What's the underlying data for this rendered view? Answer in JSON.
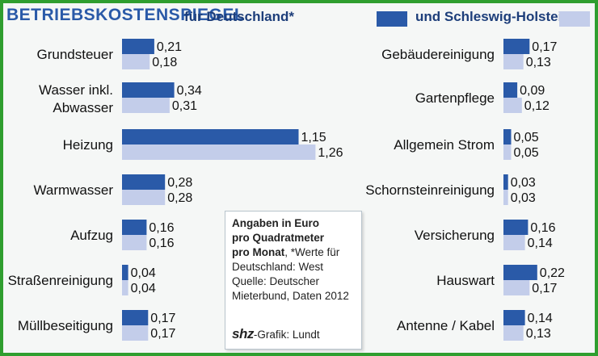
{
  "header": {
    "title": "BETRIEBSKOSTENSPIEGEL",
    "legend_de": "für Deutschland*",
    "legend_sh": "und Schleswig-Holstein"
  },
  "colors": {
    "deutschland": "#2a5aa8",
    "schleswig_holstein": "#c3cdea",
    "frame": "#2f9e2f"
  },
  "info": {
    "bold_line1": "Angaben in Euro",
    "bold_line2": "pro Quadratmeter",
    "bold_line3": "pro Monat",
    "line3_rest": ", *Werte für",
    "line4": "Deutschland: West",
    "line5": "Quelle: Deutscher",
    "line6": "Mieterbund, Daten 2012",
    "logo": "shz",
    "credit": "-Grafik: Lundt"
  },
  "chart_data": {
    "type": "bar",
    "title": "BETRIEBSKOSTENSPIEGEL",
    "unit": "Euro pro Quadratmeter pro Monat",
    "series": [
      {
        "name": "Deutschland*",
        "color": "#2a5aa8"
      },
      {
        "name": "Schleswig-Holstein",
        "color": "#c3cdea"
      }
    ],
    "left_panel": [
      {
        "label": [
          "Grundsteuer"
        ],
        "de": 0.21,
        "sh": 0.18,
        "de_text": "0,21",
        "sh_text": "0,18"
      },
      {
        "label": [
          "Wasser inkl.",
          "Abwasser"
        ],
        "de": 0.34,
        "sh": 0.31,
        "de_text": "0,34",
        "sh_text": "0,31"
      },
      {
        "label": [
          "Heizung"
        ],
        "de": 1.15,
        "sh": 1.26,
        "de_text": "1,15",
        "sh_text": "1,26"
      },
      {
        "label": [
          "Warmwasser"
        ],
        "de": 0.28,
        "sh": 0.28,
        "de_text": "0,28",
        "sh_text": "0,28"
      },
      {
        "label": [
          "Aufzug"
        ],
        "de": 0.16,
        "sh": 0.16,
        "de_text": "0,16",
        "sh_text": "0,16"
      },
      {
        "label": [
          "Straßenreinigung"
        ],
        "de": 0.04,
        "sh": 0.04,
        "de_text": "0,04",
        "sh_text": "0,04"
      },
      {
        "label": [
          "Müllbeseitigung"
        ],
        "de": 0.17,
        "sh": 0.17,
        "de_text": "0,17",
        "sh_text": "0,17"
      }
    ],
    "right_panel": [
      {
        "label": [
          "Gebäudereinigung"
        ],
        "de": 0.17,
        "sh": 0.13,
        "de_text": "0,17",
        "sh_text": "0,13"
      },
      {
        "label": [
          "Gartenpflege"
        ],
        "de": 0.09,
        "sh": 0.12,
        "de_text": "0,09",
        "sh_text": "0,12"
      },
      {
        "label": [
          "Allgemein Strom"
        ],
        "de": 0.05,
        "sh": 0.05,
        "de_text": "0,05",
        "sh_text": "0,05"
      },
      {
        "label": [
          "Schornsteinreinigung"
        ],
        "de": 0.03,
        "sh": 0.03,
        "de_text": "0,03",
        "sh_text": "0,03"
      },
      {
        "label": [
          "Versicherung"
        ],
        "de": 0.16,
        "sh": 0.14,
        "de_text": "0,16",
        "sh_text": "0,14"
      },
      {
        "label": [
          "Hauswart"
        ],
        "de": 0.22,
        "sh": 0.17,
        "de_text": "0,22",
        "sh_text": "0,17"
      },
      {
        "label": [
          "Antenne / Kabel"
        ],
        "de": 0.14,
        "sh": 0.13,
        "de_text": "0,14",
        "sh_text": "0,13"
      }
    ]
  }
}
